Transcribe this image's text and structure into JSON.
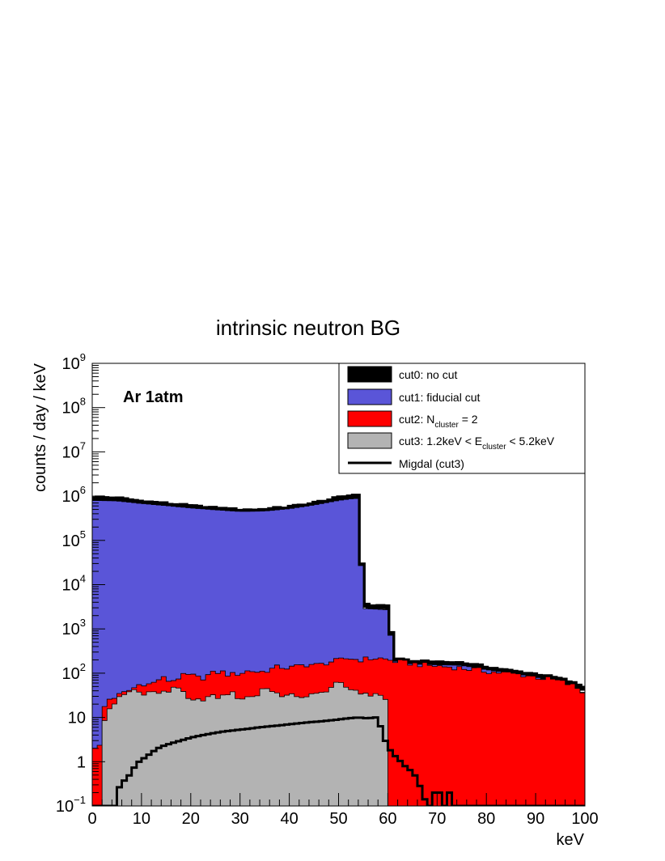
{
  "chart_data": {
    "type": "area",
    "title": "intrinsic neutron BG",
    "xlabel": "keV",
    "ylabel": "counts / day / keV",
    "annotation": "Ar 1atm",
    "xlim": [
      0,
      100
    ],
    "ylim": [
      0.1,
      1000000000
    ],
    "yscale": "log",
    "x_ticks": [
      0,
      10,
      20,
      30,
      40,
      50,
      60,
      70,
      80,
      90,
      100
    ],
    "x_tick_labels": [
      "0",
      "10",
      "20",
      "30",
      "40",
      "50",
      "60",
      "70",
      "80",
      "90",
      "100"
    ],
    "y_ticks": [
      0.1,
      1,
      10,
      100,
      1000,
      10000,
      100000,
      1000000,
      10000000,
      100000000,
      1000000000
    ],
    "y_tick_labels": [
      {
        "base": "10",
        "exp": "−1"
      },
      {
        "base": "1",
        "exp": ""
      },
      {
        "base": "10",
        "exp": ""
      },
      {
        "base": "10",
        "exp": "2"
      },
      {
        "base": "10",
        "exp": "3"
      },
      {
        "base": "10",
        "exp": "4"
      },
      {
        "base": "10",
        "exp": "5"
      },
      {
        "base": "10",
        "exp": "6"
      },
      {
        "base": "10",
        "exp": "7"
      },
      {
        "base": "10",
        "exp": "8"
      },
      {
        "base": "10",
        "exp": "9"
      }
    ],
    "legend_position": "top-right",
    "legend": [
      {
        "label": "cut0: no cut",
        "swatch": "fill",
        "color": "#000000"
      },
      {
        "label": "cut1: fiducial cut",
        "swatch": "fill",
        "color": "#5a55d8"
      },
      {
        "parts": [
          "cut2: N",
          "cluster",
          " = 2"
        ],
        "swatch": "fill",
        "color": "#ff0000"
      },
      {
        "parts": [
          "cut3: 1.2keV < E",
          "cluster",
          " < 5.2keV"
        ],
        "swatch": "fill",
        "color": "#b3b3b3"
      },
      {
        "label": "Migdal (cut3)",
        "swatch": "line",
        "color": "#000000"
      }
    ],
    "bin_width": 1,
    "series": [
      {
        "name": "cut0: no cut",
        "style": "outline",
        "color": "#000000",
        "points": [
          [
            0,
            900000
          ],
          [
            5,
            850000
          ],
          [
            10,
            720000
          ],
          [
            15,
            640000
          ],
          [
            20,
            560000
          ],
          [
            25,
            500000
          ],
          [
            30,
            460000
          ],
          [
            35,
            470000
          ],
          [
            40,
            530000
          ],
          [
            45,
            650000
          ],
          [
            50,
            850000
          ],
          [
            53,
            1000000
          ],
          [
            54,
            1000000
          ],
          [
            54,
            260000
          ],
          [
            55,
            3300
          ],
          [
            60,
            3100
          ],
          [
            60,
            3100
          ],
          [
            61,
            200
          ],
          [
            65,
            170
          ],
          [
            70,
            170
          ],
          [
            75,
            160
          ],
          [
            80,
            130
          ],
          [
            85,
            105
          ],
          [
            90,
            90
          ],
          [
            95,
            70
          ],
          [
            100,
            45
          ]
        ]
      },
      {
        "name": "cut1: fiducial cut",
        "style": "fill",
        "color": "#5a55d8",
        "points": [
          [
            0,
            800000
          ],
          [
            5,
            780000
          ],
          [
            10,
            680000
          ],
          [
            15,
            610000
          ],
          [
            20,
            540000
          ],
          [
            25,
            490000
          ],
          [
            30,
            450000
          ],
          [
            35,
            460000
          ],
          [
            40,
            520000
          ],
          [
            45,
            630000
          ],
          [
            50,
            800000
          ],
          [
            53,
            880000
          ],
          [
            54,
            880000
          ],
          [
            54,
            250000
          ],
          [
            55,
            2900
          ],
          [
            60,
            2700
          ],
          [
            60,
            2700
          ],
          [
            61,
            190
          ],
          [
            65,
            160
          ],
          [
            70,
            155
          ],
          [
            75,
            150
          ],
          [
            80,
            120
          ],
          [
            85,
            100
          ],
          [
            90,
            82
          ],
          [
            95,
            60
          ],
          [
            100,
            35
          ]
        ]
      },
      {
        "name": "cut2: N cluster = 2",
        "style": "fill",
        "color": "#ff0000",
        "points": [
          [
            0,
            2.2
          ],
          [
            2,
            2.2
          ],
          [
            2,
            12
          ],
          [
            3,
            25
          ],
          [
            5,
            30
          ],
          [
            7,
            38
          ],
          [
            9,
            50
          ],
          [
            10,
            60
          ],
          [
            12,
            55
          ],
          [
            14,
            80
          ],
          [
            16,
            65
          ],
          [
            18,
            85
          ],
          [
            20,
            90
          ],
          [
            22,
            75
          ],
          [
            24,
            95
          ],
          [
            26,
            110
          ],
          [
            28,
            90
          ],
          [
            30,
            100
          ],
          [
            32,
            115
          ],
          [
            34,
            105
          ],
          [
            36,
            120
          ],
          [
            38,
            140
          ],
          [
            40,
            130
          ],
          [
            42,
            145
          ],
          [
            44,
            160
          ],
          [
            46,
            150
          ],
          [
            48,
            180
          ],
          [
            50,
            190
          ],
          [
            52,
            220
          ],
          [
            54,
            200
          ],
          [
            56,
            210
          ],
          [
            58,
            220
          ],
          [
            60,
            200
          ],
          [
            62,
            180
          ],
          [
            64,
            170
          ],
          [
            66,
            160
          ],
          [
            68,
            150
          ],
          [
            70,
            145
          ],
          [
            72,
            140
          ],
          [
            74,
            135
          ],
          [
            76,
            125
          ],
          [
            78,
            120
          ],
          [
            80,
            110
          ],
          [
            82,
            105
          ],
          [
            84,
            100
          ],
          [
            86,
            95
          ],
          [
            88,
            90
          ],
          [
            90,
            82
          ],
          [
            92,
            75
          ],
          [
            94,
            70
          ],
          [
            96,
            60
          ],
          [
            98,
            50
          ],
          [
            100,
            35
          ]
        ]
      },
      {
        "name": "cut3: 1.2keV < E cluster < 5.2keV",
        "style": "fill",
        "color": "#b3b3b3",
        "points": [
          [
            2,
            5
          ],
          [
            3,
            14
          ],
          [
            4,
            18
          ],
          [
            5,
            25
          ],
          [
            6,
            30
          ],
          [
            7,
            32
          ],
          [
            8,
            45
          ],
          [
            10,
            35
          ],
          [
            12,
            38
          ],
          [
            14,
            35
          ],
          [
            16,
            40
          ],
          [
            17,
            60
          ],
          [
            18,
            40
          ],
          [
            20,
            22
          ],
          [
            22,
            25
          ],
          [
            24,
            30
          ],
          [
            26,
            28
          ],
          [
            28,
            38
          ],
          [
            30,
            26
          ],
          [
            32,
            30
          ],
          [
            34,
            32
          ],
          [
            35,
            60
          ],
          [
            36,
            40
          ],
          [
            38,
            30
          ],
          [
            40,
            35
          ],
          [
            42,
            25
          ],
          [
            44,
            35
          ],
          [
            46,
            32
          ],
          [
            48,
            45
          ],
          [
            50,
            60
          ],
          [
            52,
            45
          ],
          [
            54,
            40
          ],
          [
            56,
            30
          ],
          [
            58,
            38
          ],
          [
            59,
            25
          ],
          [
            60,
            25
          ]
        ]
      },
      {
        "name": "Migdal (cut3)",
        "style": "line",
        "color": "#000000",
        "points": [
          [
            0,
            0.1
          ],
          [
            5,
            0.1
          ],
          [
            5,
            0.2
          ],
          [
            6,
            0.35
          ],
          [
            7,
            0.4
          ],
          [
            8,
            0.6
          ],
          [
            9,
            0.9
          ],
          [
            10,
            1.1
          ],
          [
            11,
            1.3
          ],
          [
            12,
            1.6
          ],
          [
            13,
            1.9
          ],
          [
            14,
            2.2
          ],
          [
            16,
            2.6
          ],
          [
            18,
            3.0
          ],
          [
            20,
            3.5
          ],
          [
            22,
            3.9
          ],
          [
            24,
            4.3
          ],
          [
            26,
            4.7
          ],
          [
            28,
            5.0
          ],
          [
            30,
            5.3
          ],
          [
            32,
            5.6
          ],
          [
            34,
            6.0
          ],
          [
            36,
            6.3
          ],
          [
            38,
            6.6
          ],
          [
            40,
            7.0
          ],
          [
            42,
            7.4
          ],
          [
            44,
            7.8
          ],
          [
            46,
            8.1
          ],
          [
            48,
            8.5
          ],
          [
            50,
            9.0
          ],
          [
            52,
            9.6
          ],
          [
            54,
            10.0
          ],
          [
            56,
            9.5
          ],
          [
            57,
            10.0
          ],
          [
            58,
            10.0
          ],
          [
            59,
            4.0
          ],
          [
            60,
            2.2
          ],
          [
            61,
            1.5
          ],
          [
            62,
            1.2
          ],
          [
            63,
            0.9
          ],
          [
            64,
            0.7
          ],
          [
            65,
            0.6
          ],
          [
            66,
            0.4
          ],
          [
            67,
            0.2
          ],
          [
            68,
            0.1
          ],
          [
            69,
            0.1
          ],
          [
            69,
            0.2
          ],
          [
            71,
            0.2
          ],
          [
            71,
            0.1
          ],
          [
            72,
            0.1
          ],
          [
            72,
            0.2
          ],
          [
            73,
            0.2
          ],
          [
            73,
            0.1
          ],
          [
            100,
            0.1
          ]
        ]
      }
    ]
  }
}
